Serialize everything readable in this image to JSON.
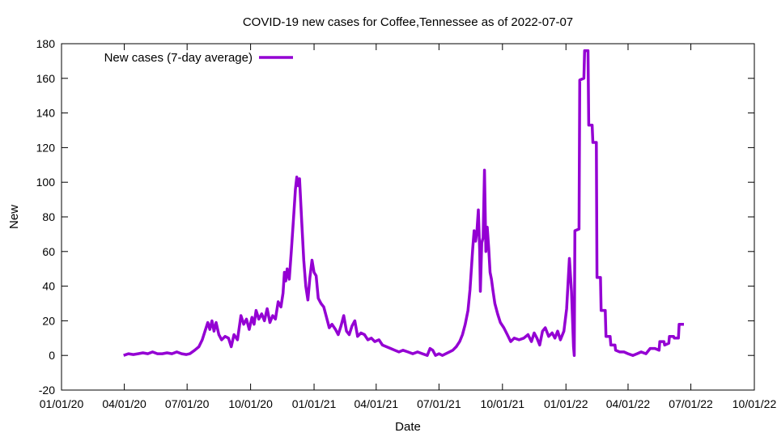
{
  "chart_data": {
    "type": "line",
    "title": "COVID-19 new cases for Coffee,Tennessee as of 2022-07-07",
    "xlabel": "Date",
    "ylabel": "New",
    "xlim": [
      "2020-01-01",
      "2022-10-01"
    ],
    "ylim": [
      -20,
      180
    ],
    "x_ticks": [
      "01/01/20",
      "04/01/20",
      "07/01/20",
      "10/01/20",
      "01/01/21",
      "04/01/21",
      "07/01/21",
      "10/01/21",
      "01/01/22",
      "04/01/22",
      "07/01/22",
      "10/01/22"
    ],
    "y_ticks": [
      -20,
      0,
      20,
      40,
      60,
      80,
      100,
      120,
      140,
      160,
      180
    ],
    "grid": false,
    "legend_position": "top-left",
    "series": [
      {
        "name": "New cases (7-day average)",
        "color": "#9400d3",
        "points": [
          [
            "2020-03-31",
            0
          ],
          [
            "2020-04-07",
            1
          ],
          [
            "2020-04-14",
            0.5
          ],
          [
            "2020-04-21",
            1
          ],
          [
            "2020-04-28",
            1.5
          ],
          [
            "2020-05-05",
            1
          ],
          [
            "2020-05-12",
            2
          ],
          [
            "2020-05-19",
            1
          ],
          [
            "2020-05-26",
            1
          ],
          [
            "2020-06-02",
            1.5
          ],
          [
            "2020-06-09",
            1
          ],
          [
            "2020-06-16",
            2
          ],
          [
            "2020-06-23",
            1
          ],
          [
            "2020-06-30",
            0.5
          ],
          [
            "2020-07-05",
            1
          ],
          [
            "2020-07-12",
            3
          ],
          [
            "2020-07-18",
            5
          ],
          [
            "2020-07-23",
            9
          ],
          [
            "2020-07-27",
            14
          ],
          [
            "2020-07-31",
            19
          ],
          [
            "2020-08-03",
            15
          ],
          [
            "2020-08-06",
            20
          ],
          [
            "2020-08-09",
            14
          ],
          [
            "2020-08-12",
            19
          ],
          [
            "2020-08-16",
            12
          ],
          [
            "2020-08-20",
            9
          ],
          [
            "2020-08-25",
            11
          ],
          [
            "2020-08-30",
            10
          ],
          [
            "2020-09-03",
            5
          ],
          [
            "2020-09-07",
            12
          ],
          [
            "2020-09-12",
            9
          ],
          [
            "2020-09-17",
            23
          ],
          [
            "2020-09-21",
            18
          ],
          [
            "2020-09-25",
            21
          ],
          [
            "2020-09-29",
            15
          ],
          [
            "2020-10-03",
            22
          ],
          [
            "2020-10-06",
            18
          ],
          [
            "2020-10-09",
            26
          ],
          [
            "2020-10-13",
            21
          ],
          [
            "2020-10-17",
            24
          ],
          [
            "2020-10-21",
            20
          ],
          [
            "2020-10-25",
            27
          ],
          [
            "2020-10-29",
            19
          ],
          [
            "2020-11-02",
            23
          ],
          [
            "2020-11-06",
            21
          ],
          [
            "2020-11-10",
            31
          ],
          [
            "2020-11-14",
            28
          ],
          [
            "2020-11-17",
            36
          ],
          [
            "2020-11-19",
            48
          ],
          [
            "2020-11-21",
            43
          ],
          [
            "2020-11-23",
            50
          ],
          [
            "2020-11-26",
            44
          ],
          [
            "2020-11-29",
            60
          ],
          [
            "2020-12-02",
            78
          ],
          [
            "2020-12-05",
            96
          ],
          [
            "2020-12-07",
            103
          ],
          [
            "2020-12-09",
            98
          ],
          [
            "2020-12-11",
            102
          ],
          [
            "2020-12-14",
            78
          ],
          [
            "2020-12-17",
            55
          ],
          [
            "2020-12-20",
            40
          ],
          [
            "2020-12-23",
            32
          ],
          [
            "2020-12-26",
            45
          ],
          [
            "2020-12-29",
            55
          ],
          [
            "2021-01-01",
            48
          ],
          [
            "2021-01-04",
            46
          ],
          [
            "2021-01-07",
            33
          ],
          [
            "2021-01-11",
            30
          ],
          [
            "2021-01-15",
            28
          ],
          [
            "2021-01-19",
            22
          ],
          [
            "2021-01-23",
            16
          ],
          [
            "2021-01-27",
            18
          ],
          [
            "2021-02-01",
            15
          ],
          [
            "2021-02-05",
            12
          ],
          [
            "2021-02-09",
            17
          ],
          [
            "2021-02-13",
            23
          ],
          [
            "2021-02-17",
            14
          ],
          [
            "2021-02-21",
            12
          ],
          [
            "2021-02-25",
            17
          ],
          [
            "2021-03-01",
            20
          ],
          [
            "2021-03-05",
            11
          ],
          [
            "2021-03-10",
            13
          ],
          [
            "2021-03-15",
            12
          ],
          [
            "2021-03-20",
            9
          ],
          [
            "2021-03-25",
            10
          ],
          [
            "2021-03-30",
            8
          ],
          [
            "2021-04-05",
            9
          ],
          [
            "2021-04-10",
            6
          ],
          [
            "2021-04-16",
            5
          ],
          [
            "2021-04-22",
            4
          ],
          [
            "2021-04-28",
            3
          ],
          [
            "2021-05-04",
            2
          ],
          [
            "2021-05-10",
            3
          ],
          [
            "2021-05-17",
            2
          ],
          [
            "2021-05-24",
            1
          ],
          [
            "2021-05-31",
            2
          ],
          [
            "2021-06-07",
            1
          ],
          [
            "2021-06-14",
            0
          ],
          [
            "2021-06-18",
            4
          ],
          [
            "2021-06-22",
            3
          ],
          [
            "2021-06-26",
            0
          ],
          [
            "2021-07-01",
            1
          ],
          [
            "2021-07-06",
            0
          ],
          [
            "2021-07-11",
            1
          ],
          [
            "2021-07-16",
            2
          ],
          [
            "2021-07-21",
            3
          ],
          [
            "2021-07-26",
            5
          ],
          [
            "2021-07-31",
            8
          ],
          [
            "2021-08-04",
            12
          ],
          [
            "2021-08-08",
            18
          ],
          [
            "2021-08-12",
            26
          ],
          [
            "2021-08-15",
            38
          ],
          [
            "2021-08-17",
            50
          ],
          [
            "2021-08-19",
            62
          ],
          [
            "2021-08-21",
            72
          ],
          [
            "2021-08-23",
            66
          ],
          [
            "2021-08-25",
            72
          ],
          [
            "2021-08-27",
            84
          ],
          [
            "2021-08-29",
            60
          ],
          [
            "2021-08-30",
            37
          ],
          [
            "2021-09-01",
            65
          ],
          [
            "2021-09-03",
            68
          ],
          [
            "2021-09-05",
            107
          ],
          [
            "2021-09-07",
            60
          ],
          [
            "2021-09-09",
            74
          ],
          [
            "2021-09-11",
            62
          ],
          [
            "2021-09-13",
            48
          ],
          [
            "2021-09-15",
            44
          ],
          [
            "2021-09-17",
            38
          ],
          [
            "2021-09-20",
            30
          ],
          [
            "2021-09-24",
            24
          ],
          [
            "2021-09-28",
            19
          ],
          [
            "2021-10-03",
            16
          ],
          [
            "2021-10-08",
            12
          ],
          [
            "2021-10-13",
            8
          ],
          [
            "2021-10-18",
            10
          ],
          [
            "2021-10-25",
            9
          ],
          [
            "2021-11-01",
            10
          ],
          [
            "2021-11-07",
            12
          ],
          [
            "2021-11-12",
            8
          ],
          [
            "2021-11-16",
            13
          ],
          [
            "2021-11-20",
            10
          ],
          [
            "2021-11-24",
            6
          ],
          [
            "2021-11-28",
            14
          ],
          [
            "2021-12-02",
            16
          ],
          [
            "2021-12-07",
            11
          ],
          [
            "2021-12-12",
            13
          ],
          [
            "2021-12-16",
            10
          ],
          [
            "2021-12-20",
            14
          ],
          [
            "2021-12-24",
            9
          ],
          [
            "2021-12-29",
            14
          ],
          [
            "2022-01-02",
            27
          ],
          [
            "2022-01-06",
            56
          ],
          [
            "2022-01-09",
            37
          ],
          [
            "2022-01-12",
            5
          ],
          [
            "2022-01-13",
            0
          ],
          [
            "2022-01-14",
            72
          ],
          [
            "2022-01-20",
            73
          ],
          [
            "2022-01-21",
            159
          ],
          [
            "2022-01-27",
            160
          ],
          [
            "2022-01-28",
            176
          ],
          [
            "2022-02-02",
            176
          ],
          [
            "2022-02-03",
            133
          ],
          [
            "2022-02-08",
            133
          ],
          [
            "2022-02-09",
            123
          ],
          [
            "2022-02-14",
            123
          ],
          [
            "2022-02-15",
            45
          ],
          [
            "2022-02-20",
            45
          ],
          [
            "2022-02-21",
            26
          ],
          [
            "2022-02-27",
            26
          ],
          [
            "2022-02-28",
            11
          ],
          [
            "2022-03-06",
            11
          ],
          [
            "2022-03-07",
            6
          ],
          [
            "2022-03-13",
            6
          ],
          [
            "2022-03-14",
            3
          ],
          [
            "2022-03-20",
            2
          ],
          [
            "2022-03-26",
            2
          ],
          [
            "2022-04-01",
            1
          ],
          [
            "2022-04-08",
            0
          ],
          [
            "2022-04-14",
            1
          ],
          [
            "2022-04-20",
            2
          ],
          [
            "2022-04-27",
            1
          ],
          [
            "2022-05-03",
            4
          ],
          [
            "2022-05-10",
            4
          ],
          [
            "2022-05-16",
            3
          ],
          [
            "2022-05-17",
            8
          ],
          [
            "2022-05-23",
            8
          ],
          [
            "2022-05-24",
            6
          ],
          [
            "2022-05-30",
            7
          ],
          [
            "2022-05-31",
            11
          ],
          [
            "2022-06-06",
            11
          ],
          [
            "2022-06-07",
            10
          ],
          [
            "2022-06-13",
            10
          ],
          [
            "2022-06-14",
            18
          ],
          [
            "2022-06-21",
            18
          ]
        ]
      }
    ]
  }
}
